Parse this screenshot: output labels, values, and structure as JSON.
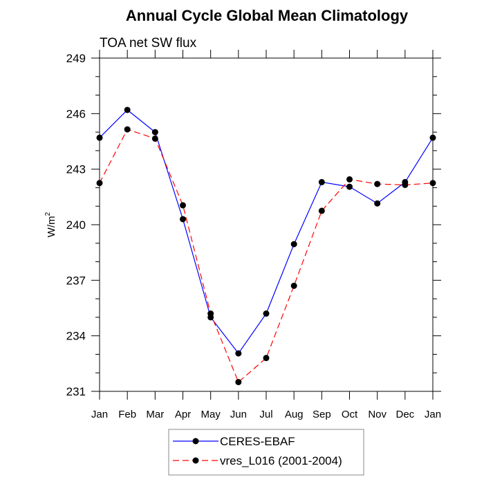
{
  "chart_data": {
    "type": "line",
    "title": "Annual Cycle Global Mean Climatology",
    "subtitle": "TOA net SW flux",
    "xlabel": "",
    "ylabel": "W/m",
    "ylabel_superscript": "2",
    "categories": [
      "Jan",
      "Feb",
      "Mar",
      "Apr",
      "May",
      "Jun",
      "Jul",
      "Aug",
      "Sep",
      "Oct",
      "Nov",
      "Dec",
      "Jan"
    ],
    "ylim": [
      231,
      249
    ],
    "yticks": [
      231,
      234,
      237,
      240,
      243,
      246,
      249
    ],
    "ytick_labels": [
      "231",
      "234",
      "237",
      "240",
      "243",
      "246",
      "249"
    ],
    "grid": false,
    "legend_position": "bottom-center",
    "series": [
      {
        "name": "CERES-EBAF",
        "color": "#0000ff",
        "line_style": "solid",
        "marker": "filled-circle",
        "values": [
          244.7,
          246.2,
          245.0,
          240.3,
          235.0,
          233.05,
          235.2,
          238.95,
          242.3,
          242.05,
          241.15,
          242.3,
          244.7
        ]
      },
      {
        "name": "vres_L016 (2001-2004)",
        "color": "#ff0000",
        "line_style": "dashed",
        "marker": "filled-circle",
        "values": [
          242.25,
          245.15,
          244.65,
          241.05,
          235.2,
          231.5,
          232.8,
          236.7,
          240.75,
          242.45,
          242.2,
          242.15,
          242.25
        ]
      }
    ]
  }
}
